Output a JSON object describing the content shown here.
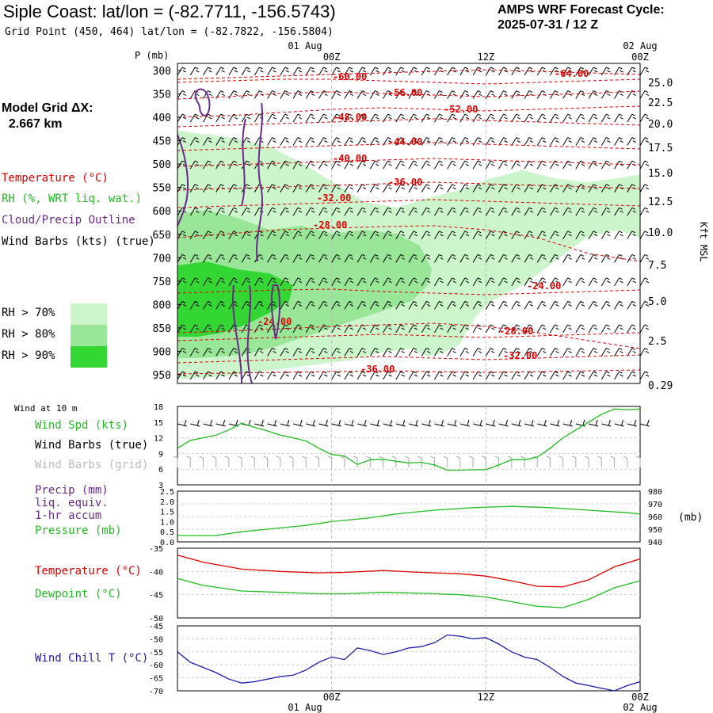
{
  "header": {
    "title": "Siple Coast:  lat/lon = (-82.7711, -156.5743)",
    "subtitle": "Grid Point (450, 464) lat/lon = (-82.7822, -156.5804)",
    "cycle_line1": "AMPS WRF Forecast Cycle:",
    "cycle_line2": "2025-07-31 / 12  Z",
    "grid_line1": "Model Grid ΔX:",
    "grid_line2": "  2.667 km"
  },
  "legend": {
    "temperature": "Temperature (°C)",
    "rh": "RH (%, WRT liq. wat.)",
    "cloud": "Cloud/Precip Outline",
    "wind_barbs": "Wind Barbs (kts) (true)",
    "rh70": "RH > 70%",
    "rh80": "RH > 80%",
    "rh90": "RH > 90%",
    "rh_colors": [
      "#ccf5cc",
      "#99e699",
      "#33d633"
    ]
  },
  "time_axis": {
    "top_dates": [
      "01 Aug",
      "02 Aug"
    ],
    "top_hours": [
      "00Z",
      "12Z",
      "00Z"
    ],
    "bottom_hours": [
      "00Z",
      "12Z",
      "00Z"
    ],
    "bottom_dates": [
      "01 Aug",
      "02 Aug"
    ]
  },
  "panel_labels": {
    "p_unit": "P (mb)",
    "kft": "Kft MSL",
    "wind10m": "Wind at 10 m",
    "wind_spd": "Wind Spd (kts)",
    "barbs_true": "Wind Barbs (true)",
    "barbs_grid": "Wind Barbs (grid)",
    "precip1": "Precip (mm)",
    "precip2": "liq. equiv.",
    "precip3": "1-hr accum",
    "pressure": "Pressure (mb)",
    "pressure_unit": "(mb)",
    "temperature": "Temperature (°C)",
    "dewpoint": "Dewpoint (°C)",
    "windchill": "Wind Chill T (°C)"
  },
  "colors": {
    "temperature": "#dd0000",
    "green": "#22bb22",
    "cloud": "#6a2a8a",
    "grid_barbs": "#aaaaaa",
    "windchill": "#1a1aaa"
  },
  "chart_data": [
    {
      "type": "heatmap",
      "name": "cross-section",
      "x_hours": [
        -12,
        24
      ],
      "y_pressure": [
        950,
        300
      ],
      "pressure_ticks": [
        300,
        350,
        400,
        450,
        500,
        550,
        600,
        650,
        700,
        750,
        800,
        850,
        900,
        950
      ],
      "height_ticks_kft": [
        "25.0",
        "22.5",
        "20.0",
        "17.5",
        "15.0",
        "12.5",
        "10.0",
        "7.5",
        "5.0",
        "2.5",
        "0.29"
      ],
      "temp_contour_labels": [
        "-64.00",
        "-60.00",
        "-56.00",
        "-52.00",
        "-48.00",
        "-44.00",
        "-40.00",
        "-36.00",
        "-32.00",
        "-28.00",
        "-24.00",
        "-24.00",
        "-28.00",
        "-32.00",
        "-36.00"
      ]
    },
    {
      "type": "line",
      "name": "wind-speed-10m",
      "x_hours": [
        -12,
        -11,
        -10,
        -9,
        -8,
        -7,
        -6,
        -5,
        -4,
        -3,
        -2,
        -1,
        0,
        1,
        2,
        3,
        4,
        5,
        6,
        7,
        8,
        9,
        10,
        11,
        12,
        13,
        14,
        15,
        16,
        17,
        18,
        19,
        20,
        21,
        22,
        23,
        24
      ],
      "values": [
        10,
        11.5,
        12,
        12.5,
        13.5,
        14.8,
        14,
        13.3,
        12.5,
        12,
        11.4,
        10,
        8.8,
        8.5,
        6.9,
        7.8,
        7.9,
        7.5,
        7.2,
        7.3,
        6.8,
        5.8,
        5.8,
        5.9,
        5.9,
        6.8,
        7.8,
        7.8,
        8.3,
        10,
        12,
        13.5,
        15,
        16.5,
        17.5,
        17.4,
        17.5
      ],
      "ylim": [
        3,
        18
      ],
      "ticks": [
        "3",
        "6",
        "9",
        "12",
        "15",
        "18"
      ]
    },
    {
      "type": "line",
      "name": "pressure",
      "x_hours": [
        -12,
        -9,
        -7,
        -5,
        -2,
        0,
        3,
        5,
        8,
        11,
        14,
        17,
        20,
        23,
        24
      ],
      "values": [
        945,
        945,
        948,
        950,
        953,
        956,
        959,
        962,
        965,
        967,
        968,
        967,
        965,
        963,
        962
      ],
      "ylim": [
        940,
        980
      ],
      "precip_ticks": [
        "0.0",
        "0.5",
        "1.0",
        "1.5",
        "2.0",
        "2.5"
      ],
      "pressure_ticks": [
        "940",
        "950",
        "960",
        "970",
        "980"
      ]
    },
    {
      "type": "line",
      "name": "temperature-dewpoint",
      "x_hours": [
        -12,
        -10,
        -7,
        -4,
        -1,
        1,
        4,
        7,
        10,
        12,
        14,
        16,
        18,
        20,
        22,
        24
      ],
      "series": [
        {
          "name": "Temperature (°C)",
          "values": [
            -36.5,
            -38,
            -39.5,
            -40,
            -40.3,
            -40.2,
            -39.8,
            -40.2,
            -40.5,
            -41,
            -42,
            -43.2,
            -43.3,
            -41.8,
            -39,
            -37.3
          ]
        },
        {
          "name": "Dewpoint (°C)",
          "values": [
            -41.5,
            -43,
            -44.2,
            -44.5,
            -44.8,
            -44.8,
            -44.5,
            -44.7,
            -45,
            -45.5,
            -46.5,
            -47.5,
            -47.8,
            -46,
            -43.5,
            -42
          ]
        }
      ],
      "ylim": [
        -50,
        -35
      ],
      "ticks": [
        "-50",
        "-45",
        "-40",
        "-35"
      ]
    },
    {
      "type": "line",
      "name": "wind-chill",
      "x_hours": [
        -12,
        -11,
        -10,
        -9,
        -8,
        -7,
        -6,
        -5,
        -4,
        -3,
        -2,
        -1,
        0,
        1,
        2,
        3,
        4,
        5,
        6,
        7,
        8,
        9,
        10,
        11,
        12,
        13,
        14,
        15,
        16,
        17,
        18,
        19,
        20,
        21,
        22,
        23,
        24
      ],
      "values": [
        -55,
        -59,
        -61,
        -63,
        -65.5,
        -67,
        -66.5,
        -65.5,
        -64.5,
        -64,
        -62,
        -59,
        -57,
        -58,
        -53.5,
        -54.5,
        -56,
        -55,
        -53.5,
        -53,
        -51.5,
        -48.5,
        -49,
        -50,
        -49.5,
        -52,
        -55,
        -57,
        -58,
        -61,
        -64.5,
        -67,
        -68,
        -69,
        -70,
        -68,
        -66.5
      ],
      "ylim": [
        -70,
        -45
      ],
      "ticks": [
        "-70",
        "-65",
        "-60",
        "-55",
        "-50",
        "-45"
      ]
    }
  ]
}
